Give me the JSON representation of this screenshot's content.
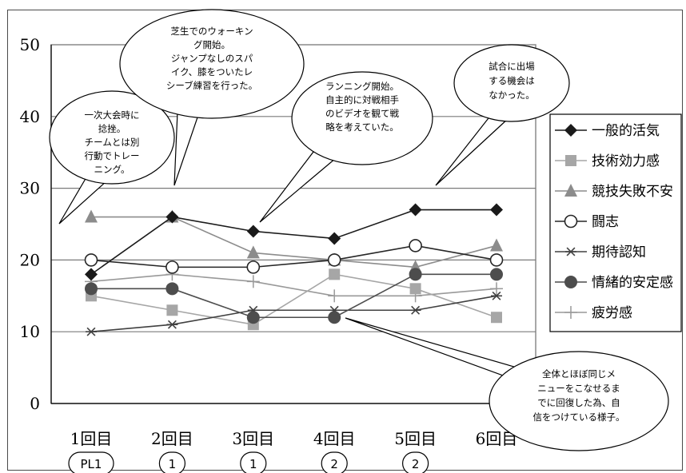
{
  "chart_data": {
    "type": "line",
    "categories": [
      "1回目",
      "2回目",
      "3回目",
      "4回目",
      "5回目",
      "6回目"
    ],
    "ylim": [
      0,
      50
    ],
    "yticks": [
      "0",
      "10",
      "20",
      "30",
      "40",
      "50"
    ],
    "grid": true,
    "legend_position": "right",
    "series": [
      {
        "name": "一般的活気",
        "values": [
          18,
          26,
          24,
          23,
          27,
          27
        ],
        "color": "#1a1a1a",
        "marker": "diamond"
      },
      {
        "name": "技術効力感",
        "values": [
          15,
          13,
          11,
          18,
          16,
          12
        ],
        "color": "#a6a6a6",
        "marker": "square"
      },
      {
        "name": "競技失敗不安",
        "values": [
          26,
          26,
          21,
          20,
          19,
          22
        ],
        "color": "#8c8c8c",
        "marker": "triangle"
      },
      {
        "name": "闘志",
        "values": [
          20,
          19,
          19,
          20,
          22,
          20
        ],
        "color": "#262626",
        "marker": "circle-open"
      },
      {
        "name": "期待認知",
        "values": [
          10,
          11,
          13,
          13,
          13,
          15
        ],
        "color": "#404040",
        "marker": "star"
      },
      {
        "name": "情緒的安定感",
        "values": [
          16,
          16,
          12,
          12,
          18,
          18
        ],
        "color": "#4d4d4d",
        "marker": "circle-filled"
      },
      {
        "name": "疲労感",
        "values": [
          17,
          18,
          17,
          15,
          15,
          16
        ],
        "color": "#999999",
        "marker": "plus"
      }
    ],
    "annotations": [
      {
        "lines": [
          "一次大会時に",
          "捻挫。",
          "チームとは別",
          "行動でトレー",
          "ニング。"
        ]
      },
      {
        "lines": [
          "芝生でのウォーキン",
          "グ開始。",
          "ジャンプなしのスパ",
          "イク、膝をついたレ",
          "シーブ練習を行った。"
        ]
      },
      {
        "lines": [
          "ランニング開始。",
          "自主的に対戦相手",
          "のビデオを観て戦",
          "略を考えていた。"
        ]
      },
      {
        "lines": [
          "試合に出場",
          "する機会は",
          "なかった。"
        ]
      },
      {
        "lines": [
          "全体とほぼ同じメ",
          "ニューをこなせるま",
          "でに回復した為、自",
          "信をつけている様子。"
        ]
      }
    ]
  },
  "session_labels": [
    "PL1",
    "1",
    "1",
    "2",
    "2"
  ]
}
